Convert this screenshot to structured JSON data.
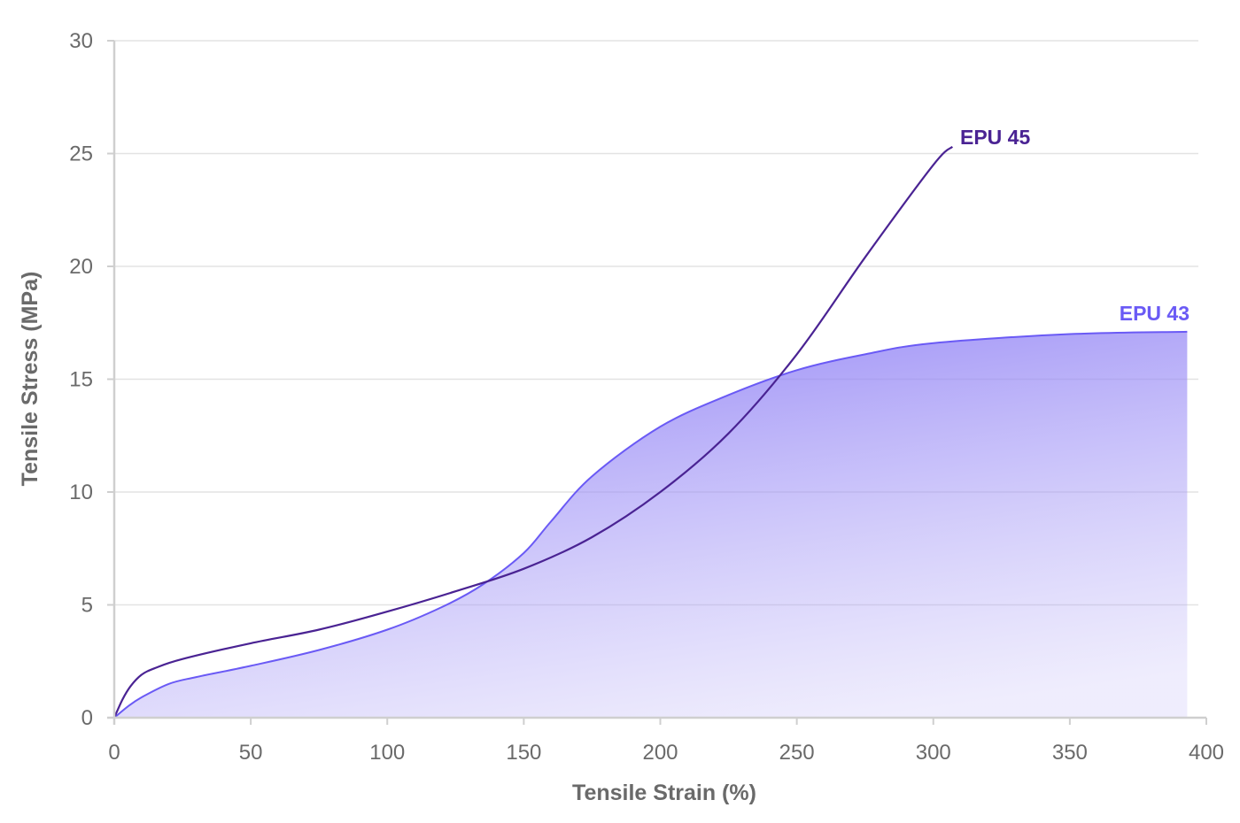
{
  "chart_data": {
    "type": "area",
    "xlabel": "Tensile Strain (%)",
    "ylabel": "Tensile Stress (MPa)",
    "xlim": [
      0,
      400
    ],
    "ylim": [
      0,
      30
    ],
    "xticks": [
      0,
      50,
      100,
      150,
      200,
      250,
      300,
      350,
      400
    ],
    "yticks": [
      0,
      5,
      10,
      15,
      20,
      25,
      30
    ],
    "grid": "horizontal",
    "series": [
      {
        "name": "EPU 43",
        "style": "filled-area",
        "color": "#6a5af5",
        "x": [
          0,
          5,
          10,
          20,
          30,
          50,
          75,
          100,
          120,
          135,
          150,
          160,
          175,
          200,
          225,
          250,
          275,
          300,
          350,
          393
        ],
        "y": [
          0,
          0.5,
          0.9,
          1.5,
          1.8,
          2.3,
          3.0,
          3.9,
          4.9,
          5.9,
          7.3,
          8.7,
          10.7,
          12.9,
          14.3,
          15.4,
          16.1,
          16.6,
          17.0,
          17.1
        ]
      },
      {
        "name": "EPU 45",
        "style": "line",
        "color": "#4a2393",
        "x": [
          0,
          3,
          6,
          10,
          15,
          25,
          50,
          75,
          100,
          125,
          150,
          175,
          200,
          225,
          250,
          275,
          300,
          307
        ],
        "y": [
          0,
          0.8,
          1.4,
          1.9,
          2.2,
          2.6,
          3.3,
          3.9,
          4.7,
          5.6,
          6.6,
          8.0,
          10.0,
          12.6,
          16.1,
          20.4,
          24.5,
          25.3
        ]
      }
    ]
  }
}
